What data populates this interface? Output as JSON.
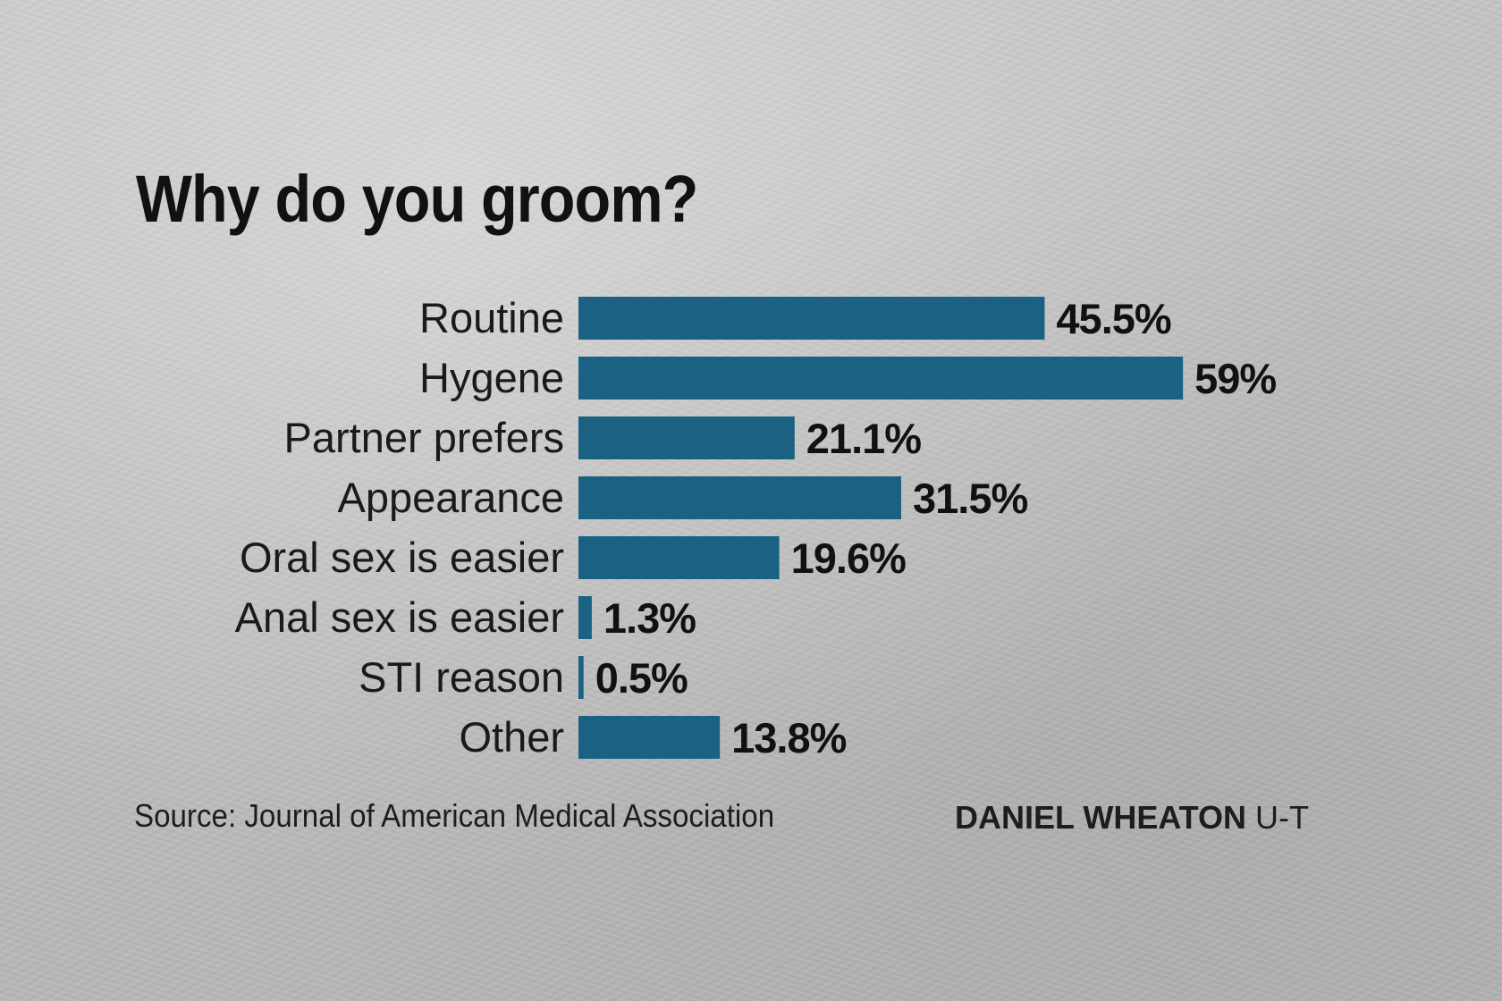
{
  "chart_data": {
    "type": "bar",
    "orientation": "horizontal",
    "title": "Why do you groom?",
    "categories": [
      "Routine",
      "Hygene",
      "Partner prefers",
      "Appearance",
      "Oral sex is easier",
      "Anal sex is easier",
      "STI reason",
      "Other"
    ],
    "values": [
      45.5,
      59,
      21.1,
      31.5,
      19.6,
      1.3,
      0.5,
      13.8
    ],
    "value_labels": [
      "45.5%",
      "59%",
      "21.1%",
      "31.5%",
      "19.6%",
      "1.3%",
      "0.5%",
      "13.8%"
    ],
    "unit": "%",
    "bar_color": "#1b6182",
    "grid": false,
    "legend": "none"
  },
  "footer": {
    "source": "Source: Journal of American Medical Association",
    "credit_name": "DANIEL WHEATON",
    "credit_org": "U-T"
  }
}
